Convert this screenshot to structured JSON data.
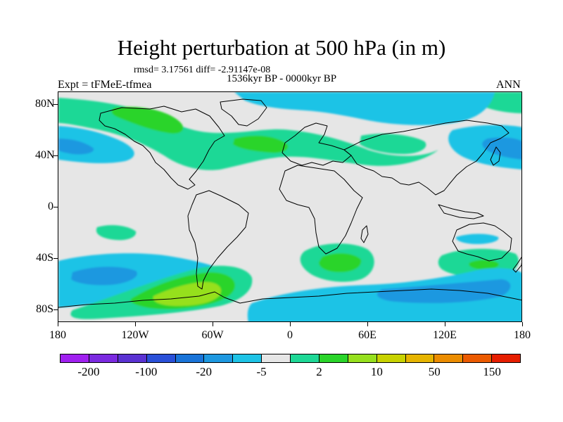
{
  "title": "Height perturbation at 500 hPa (in m)",
  "stats_line": "rmsd= 3.17561 diff= -2.91147e-08",
  "period_label": "1536kyr BP - 0000kyr BP",
  "experiment_label": "Expt = tFMeE-tfmea",
  "season_label": "ANN",
  "map": {
    "projection": "cylindrical equidistant",
    "lon_range": [
      -180,
      180
    ],
    "lat_range": [
      -90,
      90
    ],
    "y_ticks": [
      {
        "label": "80N",
        "lat": 80
      },
      {
        "label": "40N",
        "lat": 40
      },
      {
        "label": "0",
        "lat": 0
      },
      {
        "label": "40S",
        "lat": -40
      },
      {
        "label": "80S",
        "lat": -80
      }
    ],
    "x_ticks": [
      {
        "label": "180",
        "lon": -180
      },
      {
        "label": "120W",
        "lon": -120
      },
      {
        "label": "60W",
        "lon": -60
      },
      {
        "label": "0",
        "lon": 0
      },
      {
        "label": "60E",
        "lon": 60
      },
      {
        "label": "120E",
        "lon": 120
      },
      {
        "label": "180",
        "lon": 180
      }
    ]
  },
  "colorbar": {
    "colors": [
      "#a020f0",
      "#7b2ae0",
      "#5a32d2",
      "#2a50d8",
      "#1a74d8",
      "#1e98e0",
      "#1ec3e6",
      "#e6e6e6",
      "#1ed896",
      "#2ad42a",
      "#96e01e",
      "#c8d200",
      "#e6b400",
      "#eb8c00",
      "#eb5a00",
      "#e61e00"
    ],
    "labels": [
      {
        "text": "-200",
        "boundary": 1
      },
      {
        "text": "-100",
        "boundary": 3
      },
      {
        "text": "-20",
        "boundary": 5
      },
      {
        "text": "-5",
        "boundary": 7
      },
      {
        "text": "2",
        "boundary": 9
      },
      {
        "text": "10",
        "boundary": 11
      },
      {
        "text": "50",
        "boundary": 13
      },
      {
        "text": "150",
        "boundary": 15
      }
    ]
  }
}
